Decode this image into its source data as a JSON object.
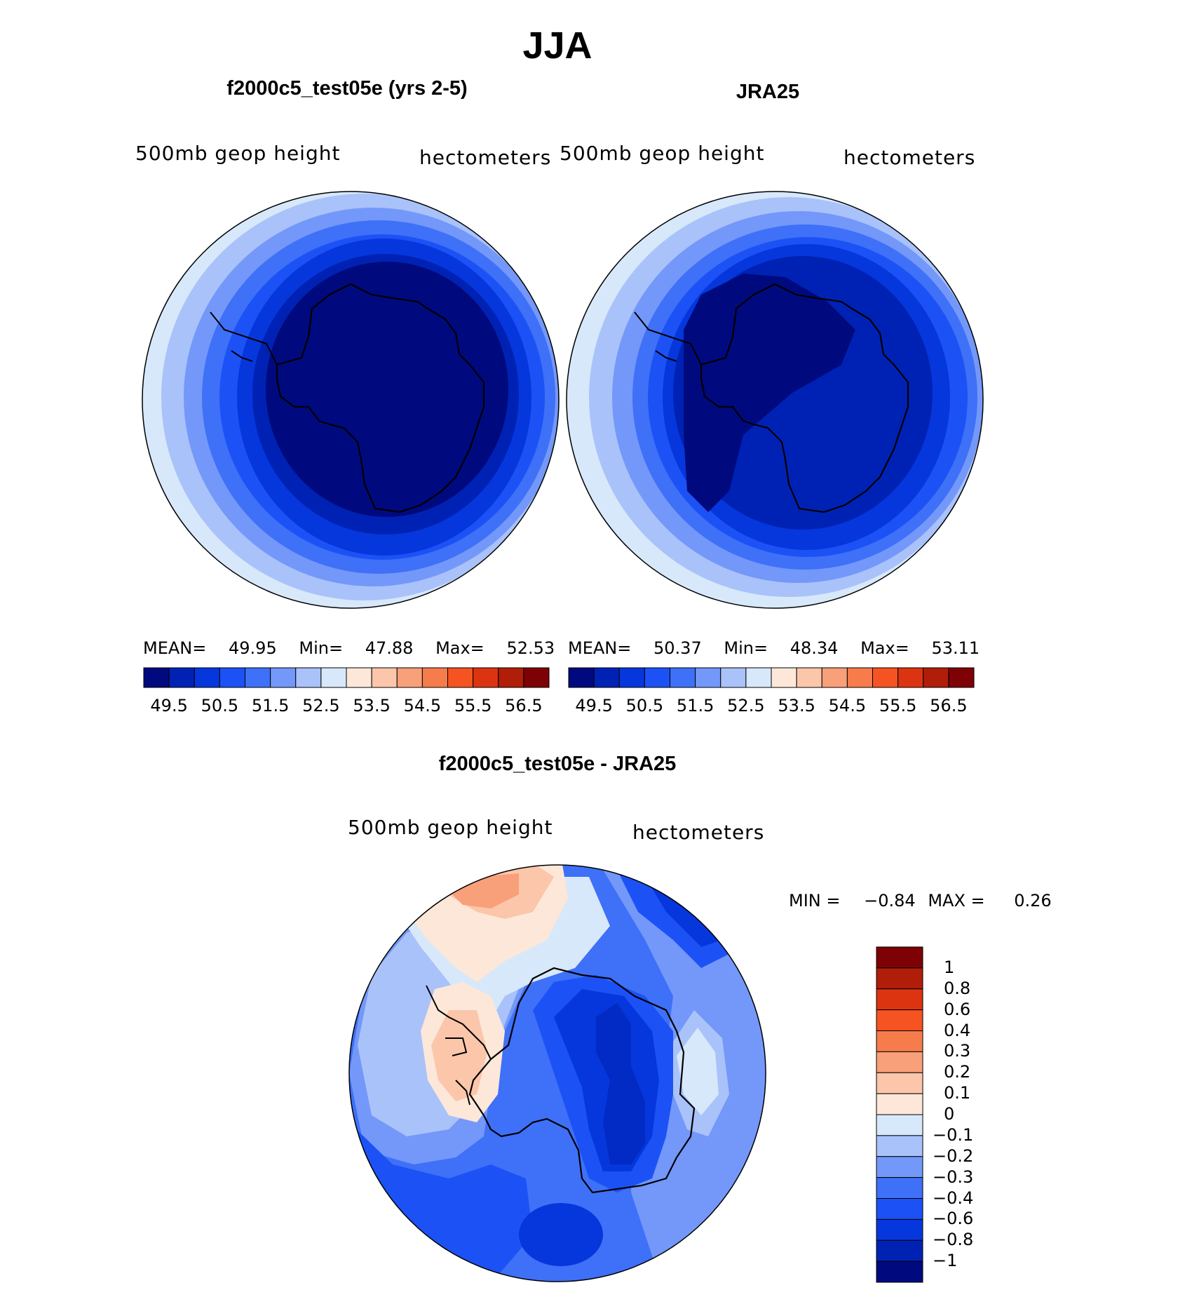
{
  "figure_title": "JJA",
  "panels": [
    {
      "title": "f2000c5_test05e (yrs 2-5)",
      "left_label": "500mb geop height",
      "right_label": "hectometers",
      "stats": {
        "mean_label": "MEAN=",
        "mean": "49.95",
        "min_label": "Min=",
        "min": "47.88",
        "max_label": "Max=",
        "max": "52.53"
      }
    },
    {
      "title": "JRA25",
      "left_label": "500mb geop height",
      "right_label": "hectometers",
      "stats": {
        "mean_label": "MEAN=",
        "mean": "50.37",
        "min_label": "Min=",
        "min": "48.34",
        "max_label": "Max=",
        "max": "53.11"
      }
    }
  ],
  "colorbar_top": {
    "colors": [
      "#000a7e",
      "#0022b4",
      "#0537dc",
      "#1c52f5",
      "#3f70f8",
      "#7398f9",
      "#a9c2fa",
      "#d7e8fb",
      "#fde7d8",
      "#fbc6aa",
      "#f8a07a",
      "#f67c4c",
      "#f55422",
      "#dc3410",
      "#b01e0a",
      "#7e0205"
    ],
    "tick_labels": [
      "49.5",
      "50.5",
      "51.5",
      "52.5",
      "53.5",
      "54.5",
      "55.5",
      "56.5"
    ]
  },
  "diff_panel": {
    "title": "f2000c5_test05e - JRA25",
    "left_label": "500mb geop height",
    "right_label": "hectometers",
    "min_label": "MIN =",
    "min": "−0.84",
    "max_label": "MAX =",
    "max": "0.26"
  },
  "colorbar_diff": {
    "colors_top_to_bottom": [
      "#7e0205",
      "#b01e0a",
      "#dc3410",
      "#f55422",
      "#f67c4c",
      "#f8a07a",
      "#fbc6aa",
      "#fde7d8",
      "#d7e8fb",
      "#a9c2fa",
      "#7398f9",
      "#3f70f8",
      "#1c52f5",
      "#0537dc",
      "#0022b4",
      "#000a7e"
    ],
    "tick_labels": [
      "1",
      "0.8",
      "0.6",
      "0.4",
      "0.3",
      "0.2",
      "0.1",
      "0",
      "−0.1",
      "−0.2",
      "−0.3",
      "−0.4",
      "−0.6",
      "−0.8",
      "−1"
    ]
  }
}
